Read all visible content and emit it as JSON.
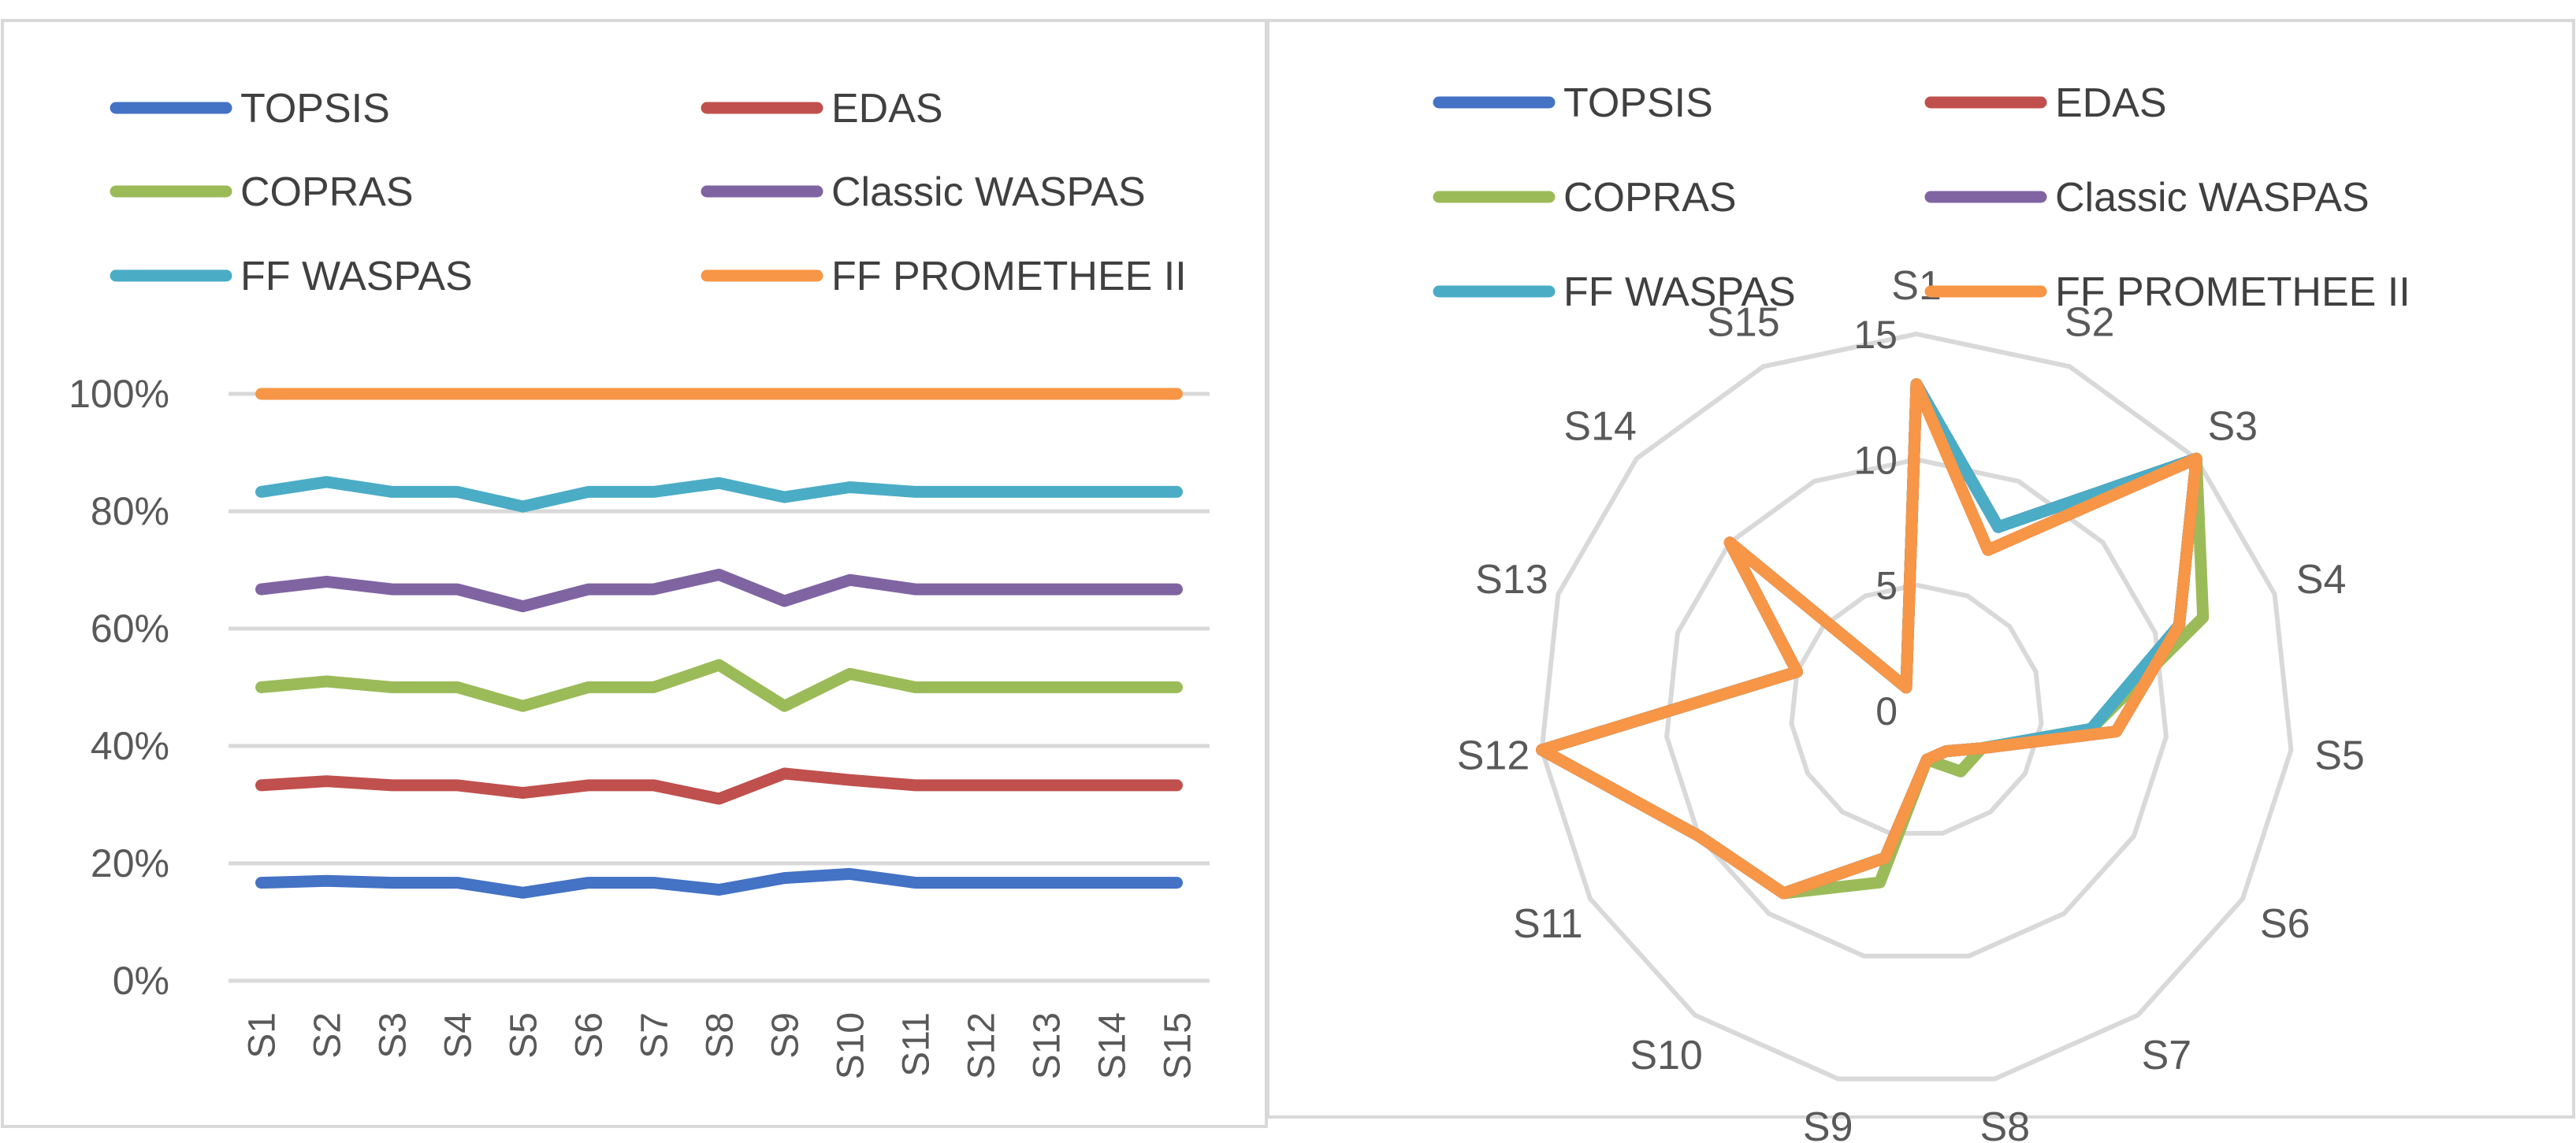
{
  "chart_data": [
    {
      "type": "line",
      "subtype": "100% stacked line",
      "legend_position": "top",
      "categories": [
        "S1",
        "S2",
        "S3",
        "S4",
        "S5",
        "S6",
        "S7",
        "S8",
        "S9",
        "S10",
        "S11",
        "S12",
        "S13",
        "S14",
        "S15"
      ],
      "y_ticks": [
        "0%",
        "20%",
        "40%",
        "60%",
        "80%",
        "100%"
      ],
      "ylim": [
        0,
        100
      ],
      "grid": true,
      "series": [
        {
          "name": "TOPSIS",
          "color": "#4472C4",
          "values": [
            16.7,
            17.0,
            16.7,
            16.7,
            15.0,
            16.7,
            16.7,
            15.5,
            17.5,
            18.2,
            16.7,
            16.7,
            16.7,
            16.7,
            16.7
          ]
        },
        {
          "name": "EDAS",
          "color": "#C0504D",
          "values": [
            33.3,
            34.0,
            33.3,
            33.3,
            32.0,
            33.3,
            33.3,
            31.0,
            35.3,
            34.2,
            33.3,
            33.3,
            33.3,
            33.3,
            33.3
          ]
        },
        {
          "name": "COPRAS",
          "color": "#9BBB59",
          "values": [
            50.0,
            51.0,
            50.0,
            50.0,
            46.8,
            50.0,
            50.0,
            53.8,
            46.8,
            52.3,
            50.0,
            50.0,
            50.0,
            50.0,
            50.0
          ]
        },
        {
          "name": "Classic WASPAS",
          "color": "#8064A2",
          "values": [
            66.7,
            68.0,
            66.7,
            66.7,
            63.8,
            66.7,
            66.7,
            69.2,
            64.7,
            68.3,
            66.7,
            66.7,
            66.7,
            66.7,
            66.7
          ]
        },
        {
          "name": "FF WASPAS",
          "color": "#4BACC6",
          "values": [
            83.3,
            85.0,
            83.3,
            83.3,
            80.8,
            83.3,
            83.3,
            84.8,
            82.4,
            84.1,
            83.3,
            83.3,
            83.3,
            83.3,
            83.3
          ]
        },
        {
          "name": "FF PROMETHEE II",
          "color": "#F79646",
          "values": [
            100,
            100,
            100,
            100,
            100,
            100,
            100,
            100,
            100,
            100,
            100,
            100,
            100,
            100,
            100
          ]
        }
      ]
    },
    {
      "type": "radar",
      "legend_position": "top",
      "categories": [
        "S1",
        "S2",
        "S3",
        "S4",
        "S5",
        "S6",
        "S7",
        "S8",
        "S9",
        "S10",
        "S11",
        "S12",
        "S13",
        "S14",
        "S15"
      ],
      "r_ticks": [
        "0",
        "5",
        "10",
        "15"
      ],
      "rlim": [
        0,
        15
      ],
      "series": [
        {
          "name": "TOPSIS",
          "color": "#4472C4",
          "values": [
            13,
            8,
            15,
            11,
            7,
            3,
            2,
            2,
            6,
            9,
            10,
            15,
            5,
            10,
            1
          ]
        },
        {
          "name": "EDAS",
          "color": "#C0504D",
          "values": [
            13,
            7,
            15,
            11,
            8,
            3,
            2,
            2,
            6,
            9,
            10,
            15,
            5,
            10,
            1
          ]
        },
        {
          "name": "COPRAS",
          "color": "#9BBB59",
          "values": [
            13,
            8,
            15,
            12,
            7,
            3,
            3,
            2,
            7,
            9,
            10,
            15,
            5,
            10,
            1
          ]
        },
        {
          "name": "Classic WASPAS",
          "color": "#8064A2",
          "values": [
            13,
            8,
            15,
            11,
            8,
            3,
            2,
            2,
            6,
            9,
            10,
            15,
            5,
            10,
            1
          ]
        },
        {
          "name": "FF WASPAS",
          "color": "#4BACC6",
          "values": [
            13,
            8,
            15,
            11,
            7,
            3,
            2,
            2,
            6,
            9,
            10,
            15,
            5,
            10,
            1
          ]
        },
        {
          "name": "FF PROMETHEE II",
          "color": "#F79646",
          "values": [
            13,
            7,
            15,
            11,
            8,
            3,
            2,
            2,
            6,
            9,
            10,
            15,
            5,
            10,
            1
          ]
        }
      ]
    }
  ]
}
